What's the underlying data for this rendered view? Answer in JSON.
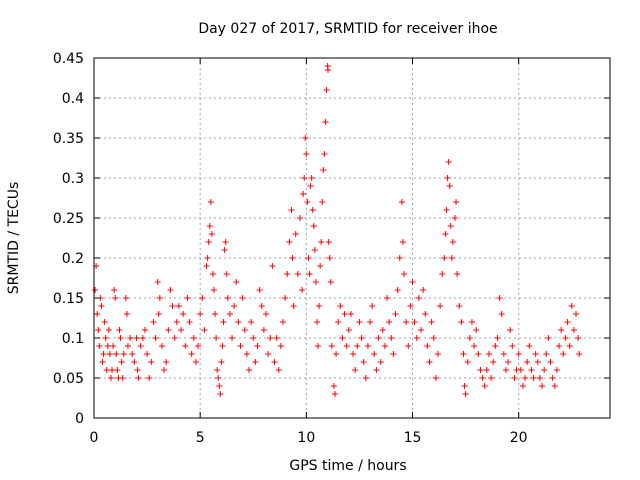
{
  "chart_data": {
    "type": "scatter",
    "title": "Day 027 of 2017, SRMTID for receiver ihoe",
    "xlabel": "GPS time / hours",
    "ylabel": "SRMTID / TECUs",
    "xlim": [
      0,
      24.3
    ],
    "ylim": [
      0,
      0.45
    ],
    "x_ticks": [
      0,
      5,
      10,
      15,
      20
    ],
    "x_tick_labels": [
      "0",
      "5",
      "10",
      "15",
      "20"
    ],
    "y_ticks": [
      0,
      0.05,
      0.1,
      0.15,
      0.2,
      0.25,
      0.3,
      0.35,
      0.4,
      0.45
    ],
    "y_tick_labels": [
      "0",
      "0.05",
      "0.1",
      "0.15",
      "0.2",
      "0.25",
      "0.3",
      "0.35",
      "0.4",
      "0.45"
    ],
    "grid": true,
    "marker": "+",
    "color": "#ff0000",
    "series": [
      {
        "name": "SRMTID",
        "points": [
          [
            0.05,
            0.16
          ],
          [
            0.1,
            0.19
          ],
          [
            0.15,
            0.13
          ],
          [
            0.2,
            0.11
          ],
          [
            0.25,
            0.09
          ],
          [
            0.3,
            0.15
          ],
          [
            0.35,
            0.14
          ],
          [
            0.4,
            0.07
          ],
          [
            0.45,
            0.08
          ],
          [
            0.5,
            0.12
          ],
          [
            0.55,
            0.1
          ],
          [
            0.6,
            0.06
          ],
          [
            0.65,
            0.09
          ],
          [
            0.7,
            0.11
          ],
          [
            0.75,
            0.08
          ],
          [
            0.8,
            0.05
          ],
          [
            0.85,
            0.06
          ],
          [
            0.9,
            0.09
          ],
          [
            0.95,
            0.16
          ],
          [
            1.0,
            0.15
          ],
          [
            1.05,
            0.08
          ],
          [
            1.1,
            0.06
          ],
          [
            1.15,
            0.05
          ],
          [
            1.2,
            0.11
          ],
          [
            1.25,
            0.1
          ],
          [
            1.3,
            0.07
          ],
          [
            1.35,
            0.05
          ],
          [
            1.4,
            0.08
          ],
          [
            1.5,
            0.15
          ],
          [
            1.55,
            0.13
          ],
          [
            1.6,
            0.09
          ],
          [
            1.7,
            0.1
          ],
          [
            1.8,
            0.08
          ],
          [
            1.9,
            0.07
          ],
          [
            2.0,
            0.1
          ],
          [
            2.05,
            0.06
          ],
          [
            2.1,
            0.05
          ],
          [
            2.2,
            0.09
          ],
          [
            2.3,
            0.1
          ],
          [
            2.4,
            0.11
          ],
          [
            2.5,
            0.08
          ],
          [
            2.6,
            0.05
          ],
          [
            2.7,
            0.07
          ],
          [
            2.8,
            0.12
          ],
          [
            2.9,
            0.1
          ],
          [
            3.0,
            0.17
          ],
          [
            3.05,
            0.13
          ],
          [
            3.1,
            0.15
          ],
          [
            3.2,
            0.09
          ],
          [
            3.3,
            0.06
          ],
          [
            3.4,
            0.07
          ],
          [
            3.5,
            0.11
          ],
          [
            3.6,
            0.16
          ],
          [
            3.7,
            0.14
          ],
          [
            3.8,
            0.1
          ],
          [
            3.9,
            0.12
          ],
          [
            4.0,
            0.14
          ],
          [
            4.1,
            0.11
          ],
          [
            4.2,
            0.13
          ],
          [
            4.3,
            0.09
          ],
          [
            4.4,
            0.15
          ],
          [
            4.5,
            0.12
          ],
          [
            4.6,
            0.08
          ],
          [
            4.7,
            0.1
          ],
          [
            4.8,
            0.07
          ],
          [
            4.9,
            0.09
          ],
          [
            5.0,
            0.13
          ],
          [
            5.1,
            0.15
          ],
          [
            5.2,
            0.11
          ],
          [
            5.3,
            0.19
          ],
          [
            5.35,
            0.2
          ],
          [
            5.4,
            0.22
          ],
          [
            5.45,
            0.24
          ],
          [
            5.5,
            0.27
          ],
          [
            5.55,
            0.23
          ],
          [
            5.6,
            0.18
          ],
          [
            5.65,
            0.16
          ],
          [
            5.7,
            0.13
          ],
          [
            5.75,
            0.1
          ],
          [
            5.8,
            0.06
          ],
          [
            5.85,
            0.05
          ],
          [
            5.9,
            0.04
          ],
          [
            5.95,
            0.03
          ],
          [
            6.0,
            0.07
          ],
          [
            6.05,
            0.09
          ],
          [
            6.1,
            0.12
          ],
          [
            6.15,
            0.21
          ],
          [
            6.2,
            0.22
          ],
          [
            6.25,
            0.18
          ],
          [
            6.3,
            0.15
          ],
          [
            6.4,
            0.13
          ],
          [
            6.5,
            0.1
          ],
          [
            6.6,
            0.14
          ],
          [
            6.7,
            0.17
          ],
          [
            6.8,
            0.12
          ],
          [
            6.9,
            0.09
          ],
          [
            7.0,
            0.15
          ],
          [
            7.1,
            0.11
          ],
          [
            7.2,
            0.08
          ],
          [
            7.3,
            0.06
          ],
          [
            7.4,
            0.12
          ],
          [
            7.5,
            0.1
          ],
          [
            7.6,
            0.07
          ],
          [
            7.7,
            0.09
          ],
          [
            7.8,
            0.16
          ],
          [
            7.9,
            0.14
          ],
          [
            8.0,
            0.11
          ],
          [
            8.1,
            0.13
          ],
          [
            8.2,
            0.08
          ],
          [
            8.3,
            0.1
          ],
          [
            8.4,
            0.19
          ],
          [
            8.5,
            0.07
          ],
          [
            8.6,
            0.1
          ],
          [
            8.7,
            0.06
          ],
          [
            8.8,
            0.09
          ],
          [
            8.9,
            0.12
          ],
          [
            9.0,
            0.15
          ],
          [
            9.1,
            0.18
          ],
          [
            9.2,
            0.22
          ],
          [
            9.3,
            0.26
          ],
          [
            9.35,
            0.2
          ],
          [
            9.4,
            0.14
          ],
          [
            9.5,
            0.23
          ],
          [
            9.6,
            0.18
          ],
          [
            9.7,
            0.25
          ],
          [
            9.8,
            0.16
          ],
          [
            9.85,
            0.28
          ],
          [
            9.9,
            0.3
          ],
          [
            9.95,
            0.35
          ],
          [
            10.0,
            0.33
          ],
          [
            10.05,
            0.27
          ],
          [
            10.1,
            0.2
          ],
          [
            10.15,
            0.18
          ],
          [
            10.2,
            0.29
          ],
          [
            10.25,
            0.3
          ],
          [
            10.3,
            0.26
          ],
          [
            10.35,
            0.24
          ],
          [
            10.4,
            0.21
          ],
          [
            10.45,
            0.17
          ],
          [
            10.5,
            0.12
          ],
          [
            10.55,
            0.09
          ],
          [
            10.6,
            0.14
          ],
          [
            10.65,
            0.19
          ],
          [
            10.7,
            0.22
          ],
          [
            10.75,
            0.27
          ],
          [
            10.8,
            0.31
          ],
          [
            10.85,
            0.33
          ],
          [
            10.9,
            0.37
          ],
          [
            10.95,
            0.41
          ],
          [
            11.0,
            0.44
          ],
          [
            11.02,
            0.435
          ],
          [
            11.05,
            0.22
          ],
          [
            11.1,
            0.2
          ],
          [
            11.15,
            0.17
          ],
          [
            11.2,
            0.09
          ],
          [
            11.3,
            0.04
          ],
          [
            11.35,
            0.03
          ],
          [
            11.4,
            0.08
          ],
          [
            11.5,
            0.12
          ],
          [
            11.6,
            0.14
          ],
          [
            11.7,
            0.1
          ],
          [
            11.8,
            0.13
          ],
          [
            11.9,
            0.09
          ],
          [
            12.0,
            0.11
          ],
          [
            12.1,
            0.13
          ],
          [
            12.2,
            0.08
          ],
          [
            12.3,
            0.06
          ],
          [
            12.4,
            0.09
          ],
          [
            12.5,
            0.12
          ],
          [
            12.6,
            0.1
          ],
          [
            12.7,
            0.07
          ],
          [
            12.8,
            0.05
          ],
          [
            12.9,
            0.09
          ],
          [
            13.0,
            0.12
          ],
          [
            13.1,
            0.14
          ],
          [
            13.2,
            0.08
          ],
          [
            13.3,
            0.06
          ],
          [
            13.4,
            0.1
          ],
          [
            13.5,
            0.07
          ],
          [
            13.6,
            0.11
          ],
          [
            13.7,
            0.09
          ],
          [
            13.8,
            0.15
          ],
          [
            13.9,
            0.12
          ],
          [
            14.0,
            0.1
          ],
          [
            14.1,
            0.08
          ],
          [
            14.2,
            0.13
          ],
          [
            14.3,
            0.16
          ],
          [
            14.4,
            0.2
          ],
          [
            14.5,
            0.27
          ],
          [
            14.55,
            0.22
          ],
          [
            14.6,
            0.18
          ],
          [
            14.7,
            0.12
          ],
          [
            14.8,
            0.09
          ],
          [
            14.9,
            0.14
          ],
          [
            15.0,
            0.17
          ],
          [
            15.1,
            0.12
          ],
          [
            15.2,
            0.1
          ],
          [
            15.3,
            0.15
          ],
          [
            15.4,
            0.11
          ],
          [
            15.5,
            0.16
          ],
          [
            15.6,
            0.13
          ],
          [
            15.7,
            0.09
          ],
          [
            15.8,
            0.07
          ],
          [
            15.9,
            0.12
          ],
          [
            16.0,
            0.1
          ],
          [
            16.1,
            0.05
          ],
          [
            16.2,
            0.08
          ],
          [
            16.3,
            0.14
          ],
          [
            16.4,
            0.18
          ],
          [
            16.5,
            0.2
          ],
          [
            16.55,
            0.23
          ],
          [
            16.6,
            0.26
          ],
          [
            16.65,
            0.3
          ],
          [
            16.7,
            0.32
          ],
          [
            16.75,
            0.29
          ],
          [
            16.8,
            0.24
          ],
          [
            16.85,
            0.2
          ],
          [
            16.9,
            0.22
          ],
          [
            17.0,
            0.25
          ],
          [
            17.05,
            0.27
          ],
          [
            17.1,
            0.18
          ],
          [
            17.2,
            0.14
          ],
          [
            17.3,
            0.12
          ],
          [
            17.4,
            0.08
          ],
          [
            17.45,
            0.04
          ],
          [
            17.5,
            0.03
          ],
          [
            17.6,
            0.07
          ],
          [
            17.7,
            0.1
          ],
          [
            17.8,
            0.12
          ],
          [
            17.9,
            0.09
          ],
          [
            18.0,
            0.11
          ],
          [
            18.1,
            0.08
          ],
          [
            18.2,
            0.06
          ],
          [
            18.3,
            0.05
          ],
          [
            18.4,
            0.04
          ],
          [
            18.5,
            0.06
          ],
          [
            18.6,
            0.08
          ],
          [
            18.7,
            0.05
          ],
          [
            18.8,
            0.07
          ],
          [
            18.9,
            0.09
          ],
          [
            19.0,
            0.1
          ],
          [
            19.1,
            0.15
          ],
          [
            19.2,
            0.13
          ],
          [
            19.3,
            0.08
          ],
          [
            19.4,
            0.06
          ],
          [
            19.5,
            0.07
          ],
          [
            19.6,
            0.11
          ],
          [
            19.7,
            0.09
          ],
          [
            19.8,
            0.05
          ],
          [
            19.9,
            0.06
          ],
          [
            20.0,
            0.08
          ],
          [
            20.1,
            0.06
          ],
          [
            20.2,
            0.04
          ],
          [
            20.3,
            0.05
          ],
          [
            20.4,
            0.07
          ],
          [
            20.5,
            0.09
          ],
          [
            20.6,
            0.06
          ],
          [
            20.7,
            0.05
          ],
          [
            20.8,
            0.08
          ],
          [
            20.9,
            0.07
          ],
          [
            21.0,
            0.05
          ],
          [
            21.1,
            0.04
          ],
          [
            21.2,
            0.06
          ],
          [
            21.3,
            0.08
          ],
          [
            21.4,
            0.1
          ],
          [
            21.5,
            0.07
          ],
          [
            21.6,
            0.05
          ],
          [
            21.7,
            0.04
          ],
          [
            21.8,
            0.06
          ],
          [
            21.9,
            0.09
          ],
          [
            22.0,
            0.11
          ],
          [
            22.1,
            0.08
          ],
          [
            22.2,
            0.1
          ],
          [
            22.3,
            0.12
          ],
          [
            22.4,
            0.09
          ],
          [
            22.5,
            0.14
          ],
          [
            22.6,
            0.11
          ],
          [
            22.7,
            0.13
          ],
          [
            22.8,
            0.1
          ],
          [
            22.85,
            0.08
          ]
        ]
      }
    ]
  }
}
